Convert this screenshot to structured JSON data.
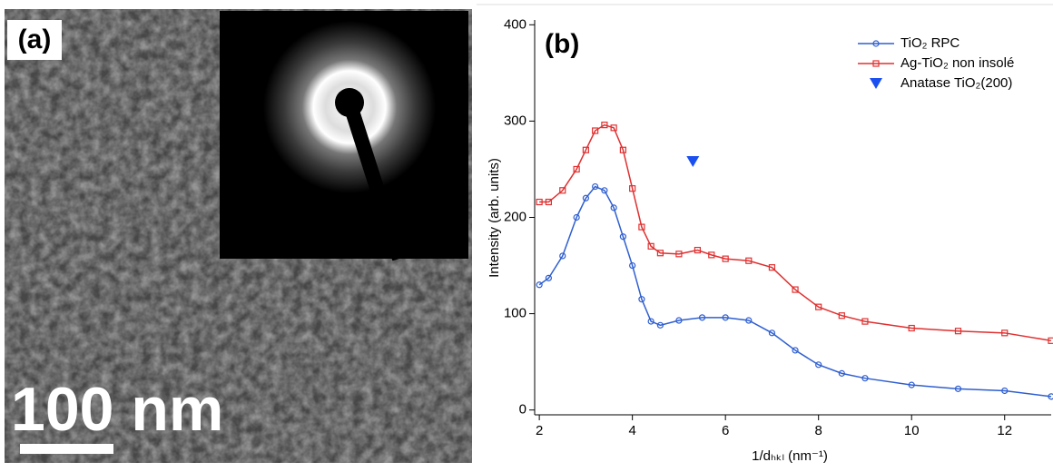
{
  "panel_a": {
    "label": "(a)",
    "scale_bar": "100 nm"
  },
  "chart_data": {
    "type": "line",
    "label": "(b)",
    "x_label": "1/dₕₖₗ (nm⁻¹)",
    "y_label": "Intensity (arb. units)",
    "xlim": [
      1.9,
      13
    ],
    "ylim": [
      -5,
      405
    ],
    "xticks": [
      2,
      4,
      6,
      8,
      10,
      12
    ],
    "yticks": [
      0,
      100,
      200,
      300,
      400
    ],
    "series": [
      {
        "name": "TiO₂ RPC",
        "color": "#2f5fd0",
        "marker": "circle",
        "line": true,
        "x": [
          2,
          2.2,
          2.5,
          2.8,
          3.0,
          3.2,
          3.4,
          3.6,
          3.8,
          4.0,
          4.2,
          4.4,
          4.6,
          5.0,
          5.5,
          6.0,
          6.5,
          7.0,
          7.5,
          8.0,
          8.5,
          9,
          10,
          11,
          12,
          13
        ],
        "values": [
          130,
          137,
          160,
          200,
          220,
          232,
          228,
          210,
          180,
          150,
          115,
          92,
          88,
          93,
          96,
          96,
          93,
          80,
          62,
          47,
          38,
          33,
          26,
          22,
          20,
          14
        ]
      },
      {
        "name": "Ag-TiO₂ non insolé",
        "color": "#e03030",
        "marker": "square",
        "line": true,
        "x": [
          2,
          2.2,
          2.5,
          2.8,
          3.0,
          3.2,
          3.4,
          3.6,
          3.8,
          4.0,
          4.2,
          4.4,
          4.6,
          5.0,
          5.4,
          5.7,
          6.0,
          6.5,
          7.0,
          7.5,
          8.0,
          8.5,
          9,
          10,
          11,
          12,
          13
        ],
        "values": [
          216,
          216,
          228,
          250,
          270,
          290,
          296,
          293,
          270,
          230,
          190,
          170,
          163,
          162,
          166,
          161,
          157,
          155,
          148,
          125,
          107,
          98,
          92,
          85,
          82,
          80,
          72
        ]
      },
      {
        "name": "Anatase TiO₂(200)",
        "color": "#1a4ff0",
        "marker": "triangle",
        "line": false,
        "x": [
          5.3
        ],
        "values": [
          258
        ]
      }
    ]
  }
}
